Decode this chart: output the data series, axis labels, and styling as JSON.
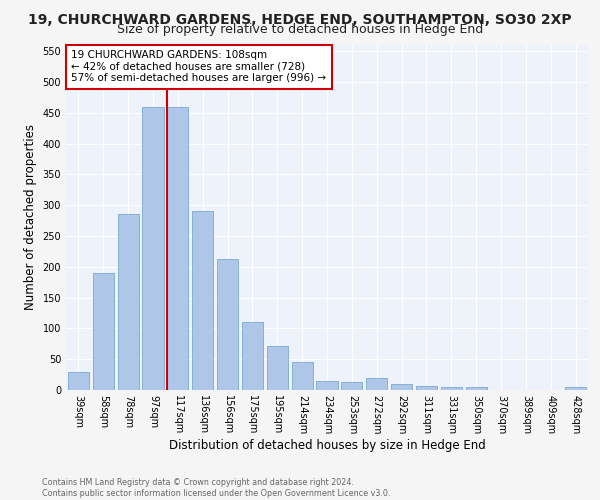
{
  "title": "19, CHURCHWARD GARDENS, HEDGE END, SOUTHAMPTON, SO30 2XP",
  "subtitle": "Size of property relative to detached houses in Hedge End",
  "xlabel": "Distribution of detached houses by size in Hedge End",
  "ylabel": "Number of detached properties",
  "bar_labels": [
    "39sqm",
    "58sqm",
    "78sqm",
    "97sqm",
    "117sqm",
    "136sqm",
    "156sqm",
    "175sqm",
    "195sqm",
    "214sqm",
    "234sqm",
    "253sqm",
    "272sqm",
    "292sqm",
    "311sqm",
    "331sqm",
    "350sqm",
    "370sqm",
    "389sqm",
    "409sqm",
    "428sqm"
  ],
  "bar_values": [
    30,
    190,
    285,
    460,
    460,
    290,
    213,
    110,
    72,
    46,
    15,
    13,
    20,
    10,
    7,
    5,
    5,
    0,
    0,
    0,
    5
  ],
  "bar_color": "#aec6e8",
  "bar_edge_color": "#7aaad0",
  "vline_color": "#cc0000",
  "annotation_text": "19 CHURCHWARD GARDENS: 108sqm\n← 42% of detached houses are smaller (728)\n57% of semi-detached houses are larger (996) →",
  "annotation_box_color": "#ffffff",
  "annotation_box_edge": "#cc0000",
  "bg_color": "#eef2fa",
  "grid_color": "#ffffff",
  "fig_color": "#f5f5f5",
  "ylim": [
    0,
    560
  ],
  "yticks": [
    0,
    50,
    100,
    150,
    200,
    250,
    300,
    350,
    400,
    450,
    500,
    550
  ],
  "footer": "Contains HM Land Registry data © Crown copyright and database right 2024.\nContains public sector information licensed under the Open Government Licence v3.0.",
  "title_fontsize": 10,
  "subtitle_fontsize": 9,
  "tick_fontsize": 7,
  "ylabel_fontsize": 8.5,
  "xlabel_fontsize": 8.5,
  "annotation_fontsize": 7.5
}
